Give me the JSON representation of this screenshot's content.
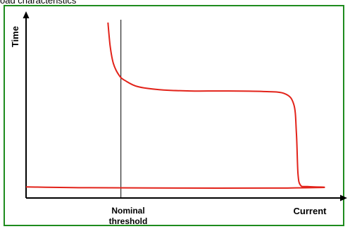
{
  "header": {
    "title_fragment": "oad characteristics"
  },
  "colors": {
    "frame": "#1e8c1e",
    "curve": "#e2231a",
    "axis": "#000000"
  },
  "chart_data": {
    "type": "line",
    "title": "",
    "xlabel": "Current",
    "ylabel": "Time",
    "grid": false,
    "legend": "none",
    "annotations": [
      {
        "text_lines": [
          "Nominal",
          "threshold"
        ],
        "kind": "vertical-reference-line",
        "x": 0.3
      }
    ],
    "xlim": [
      0,
      1
    ],
    "ylim": [
      0,
      1
    ],
    "series": [
      {
        "values": [
          [
            0.259,
            1.0
          ],
          [
            0.266,
            0.86
          ],
          [
            0.276,
            0.757
          ],
          [
            0.295,
            0.683
          ],
          [
            0.315,
            0.652
          ],
          [
            0.353,
            0.618
          ],
          [
            0.421,
            0.6
          ],
          [
            0.52,
            0.592
          ],
          [
            0.62,
            0.592
          ],
          [
            0.746,
            0.589
          ],
          [
            0.818,
            0.576
          ],
          [
            0.847,
            0.51
          ],
          [
            0.855,
            0.34
          ],
          [
            0.86,
            0.1
          ],
          [
            0.868,
            0.03
          ],
          [
            0.89,
            0.022
          ],
          [
            0.945,
            0.018
          ]
        ]
      },
      {
        "values": [
          [
            0.0,
            0.02
          ],
          [
            0.2,
            0.015
          ],
          [
            0.5,
            0.013
          ],
          [
            0.8,
            0.013
          ],
          [
            0.945,
            0.017
          ]
        ]
      }
    ]
  }
}
